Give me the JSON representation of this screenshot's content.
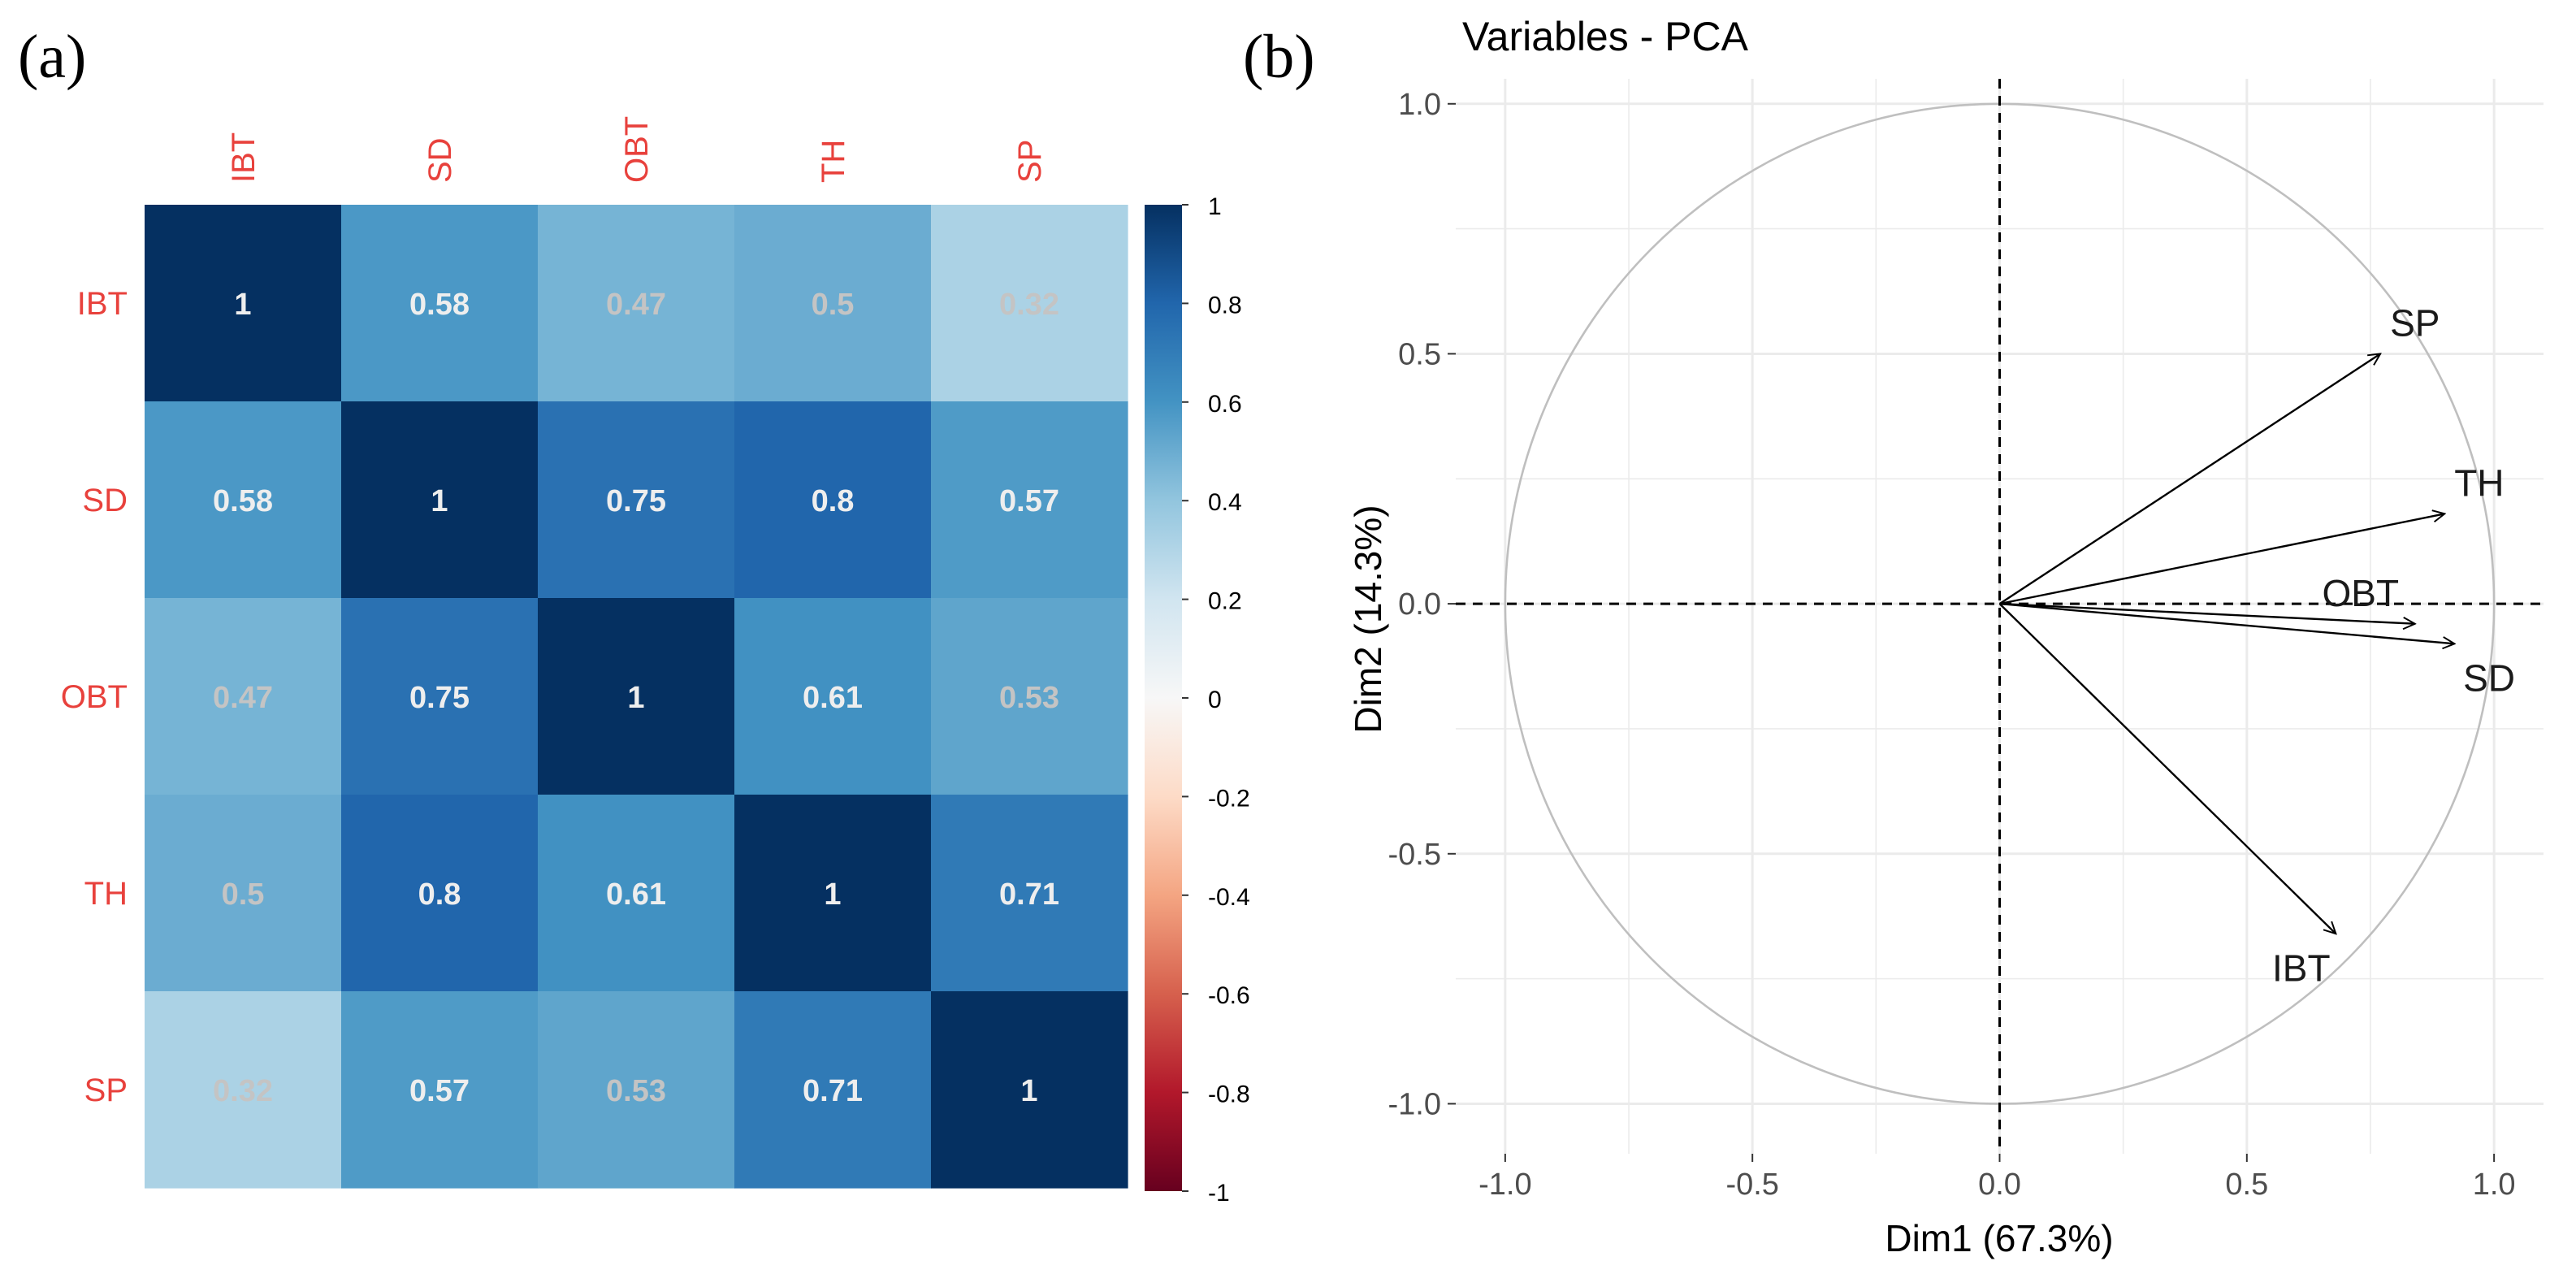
{
  "panel_labels": {
    "a": "(a)",
    "b": "(b)"
  },
  "chart_data": [
    {
      "type": "heatmap",
      "title": "",
      "variables": [
        "IBT",
        "SD",
        "OBT",
        "TH",
        "SP"
      ],
      "matrix": [
        [
          1,
          0.58,
          0.47,
          0.5,
          0.32
        ],
        [
          0.58,
          1,
          0.75,
          0.8,
          0.57
        ],
        [
          0.47,
          0.75,
          1,
          0.61,
          0.53
        ],
        [
          0.5,
          0.8,
          0.61,
          1,
          0.71
        ],
        [
          0.32,
          0.57,
          0.53,
          0.71,
          1
        ]
      ],
      "cell_labels": [
        [
          "1",
          "0.58",
          "0.47",
          "0.5",
          "0.32"
        ],
        [
          "0.58",
          "1",
          "0.75",
          "0.8",
          "0.57"
        ],
        [
          "0.47",
          "0.75",
          "1",
          "0.61",
          "0.53"
        ],
        [
          "0.5",
          "0.8",
          "0.61",
          "1",
          "0.71"
        ],
        [
          "0.32",
          "0.57",
          "0.53",
          "0.71",
          "1"
        ]
      ],
      "colorbar": {
        "range": [
          -1,
          1
        ],
        "ticks": [
          1,
          0.8,
          0.6,
          0.4,
          0.2,
          0,
          -0.2,
          -0.4,
          -0.6,
          -0.8,
          -1
        ],
        "tick_labels": [
          "1",
          "0.8",
          "0.6",
          "0.4",
          "0.2",
          "0",
          "-0.2",
          "-0.4",
          "-0.6",
          "-0.8",
          "-1"
        ]
      },
      "colors": {
        "label_red": "#e8413c",
        "value_strong": "#eeeeee",
        "value_weak": "#c4c4c4",
        "ramp": [
          [
            -1,
            "#67001f"
          ],
          [
            -0.8,
            "#b2182b"
          ],
          [
            -0.6,
            "#d6604d"
          ],
          [
            -0.4,
            "#f4a582"
          ],
          [
            -0.2,
            "#fddbc7"
          ],
          [
            0,
            "#f7f7f7"
          ],
          [
            0.2,
            "#d1e5f0"
          ],
          [
            0.4,
            "#92c5de"
          ],
          [
            0.6,
            "#4393c3"
          ],
          [
            0.8,
            "#2166ac"
          ],
          [
            1,
            "#053061"
          ]
        ]
      }
    },
    {
      "type": "scatter",
      "title": "Variables - PCA",
      "xlabel": "Dim1 (67.3%)",
      "ylabel": "Dim2 (14.3%)",
      "xlim": [
        -1.1,
        1.1
      ],
      "ylim": [
        -1.1,
        1.05
      ],
      "x_ticks": [
        -1.0,
        -0.5,
        0.0,
        0.5,
        1.0
      ],
      "x_tick_labels": [
        "-1.0",
        "-0.5",
        "0.0",
        "0.5",
        "1.0"
      ],
      "y_ticks": [
        1.0,
        0.5,
        0.0,
        -0.5,
        -1.0
      ],
      "y_tick_labels": [
        "1.0",
        "0.5",
        "0.0",
        "-0.5",
        "-1.0"
      ],
      "grid": true,
      "circle_radius": 1.0,
      "arrows": [
        {
          "name": "SP",
          "x": 0.77,
          "y": 0.5,
          "label_x": 0.84,
          "label_y": 0.56
        },
        {
          "name": "TH",
          "x": 0.9,
          "y": 0.18,
          "label_x": 0.97,
          "label_y": 0.24
        },
        {
          "name": "OBT",
          "x": 0.84,
          "y": -0.04,
          "label_x": 0.73,
          "label_y": 0.02
        },
        {
          "name": "SD",
          "x": 0.92,
          "y": -0.08,
          "label_x": 0.99,
          "label_y": -0.15
        },
        {
          "name": "IBT",
          "x": 0.68,
          "y": -0.66,
          "label_x": 0.61,
          "label_y": -0.73
        }
      ],
      "colors": {
        "grid": "#ebebeb",
        "circle": "#bfbfbf",
        "arrow": "#000000",
        "text": "#1a1a1a",
        "axis_text": "#4d4d4d"
      }
    }
  ]
}
